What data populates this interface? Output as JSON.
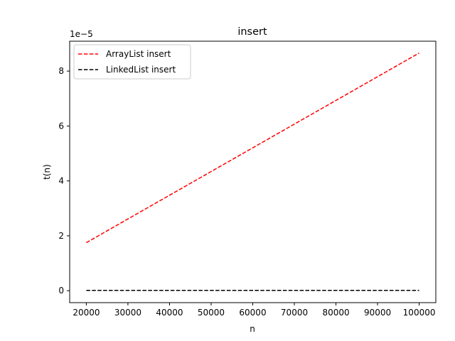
{
  "chart_data": {
    "type": "line",
    "title": "insert",
    "xlabel": "n",
    "ylabel": "t(n)",
    "y_offset_label": "1e−5",
    "xlim": [
      16000,
      104000
    ],
    "ylim": [
      -0.435,
      9.09
    ],
    "x_ticks": [
      20000,
      30000,
      40000,
      50000,
      60000,
      70000,
      80000,
      90000,
      100000
    ],
    "x_tick_labels": [
      "20000",
      "30000",
      "40000",
      "50000",
      "60000",
      "70000",
      "80000",
      "90000",
      "100000"
    ],
    "y_ticks": [
      0,
      2,
      4,
      6,
      8
    ],
    "y_tick_labels": [
      "0",
      "2",
      "4",
      "6",
      "8"
    ],
    "grid": false,
    "legend_position": "upper-left",
    "series": [
      {
        "name": "ArrayList insert",
        "color": "#ff0000",
        "dash": "dashed",
        "x": [
          20000,
          100000
        ],
        "y": [
          1.75,
          8.66
        ]
      },
      {
        "name": "LinkedList insert",
        "color": "#000000",
        "dash": "dashed",
        "x": [
          20000,
          100000
        ],
        "y": [
          0.01,
          0.01
        ]
      }
    ]
  }
}
